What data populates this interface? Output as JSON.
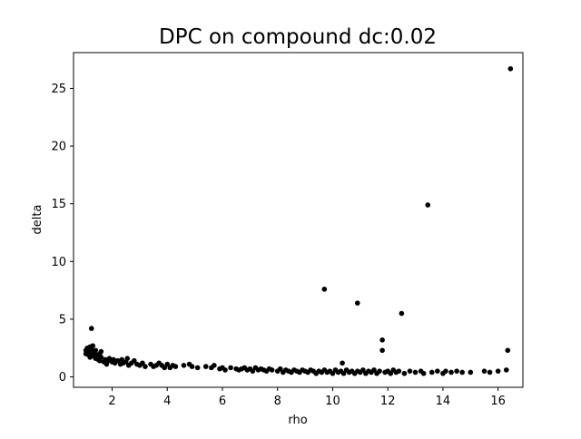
{
  "chart_data": {
    "type": "scatter",
    "title": "DPC on compound  dc:0.02",
    "xlabel": "rho",
    "ylabel": "delta",
    "xlim": [
      0.6,
      16.9
    ],
    "ylim": [
      -0.9,
      28.1
    ],
    "xticks": [
      2,
      4,
      6,
      8,
      10,
      12,
      14,
      16
    ],
    "yticks": [
      0,
      5,
      10,
      15,
      20,
      25
    ],
    "grid": false,
    "legend": "none",
    "marker_color": "#000000",
    "points": [
      [
        16.45,
        26.7
      ],
      [
        13.45,
        14.9
      ],
      [
        9.7,
        7.6
      ],
      [
        10.9,
        6.4
      ],
      [
        12.5,
        5.5
      ],
      [
        1.25,
        4.2
      ],
      [
        11.8,
        3.2
      ],
      [
        11.8,
        2.3
      ],
      [
        16.35,
        2.3
      ],
      [
        10.35,
        1.2
      ],
      [
        1.05,
        2.3
      ],
      [
        1.05,
        2.0
      ],
      [
        1.1,
        2.5
      ],
      [
        1.1,
        2.2
      ],
      [
        1.15,
        1.9
      ],
      [
        1.2,
        2.6
      ],
      [
        1.2,
        2.1
      ],
      [
        1.2,
        1.7
      ],
      [
        1.25,
        2.4
      ],
      [
        1.25,
        1.9
      ],
      [
        1.3,
        2.7
      ],
      [
        1.3,
        2.2
      ],
      [
        1.35,
        1.8
      ],
      [
        1.35,
        2.0
      ],
      [
        1.4,
        2.3
      ],
      [
        1.4,
        1.6
      ],
      [
        1.45,
        1.9
      ],
      [
        1.5,
        1.5
      ],
      [
        1.55,
        2.0
      ],
      [
        1.55,
        1.4
      ],
      [
        1.6,
        2.2
      ],
      [
        1.6,
        1.7
      ],
      [
        1.7,
        1.3
      ],
      [
        1.75,
        1.5
      ],
      [
        1.8,
        1.1
      ],
      [
        1.85,
        1.4
      ],
      [
        1.9,
        1.6
      ],
      [
        2.0,
        1.3
      ],
      [
        2.05,
        1.5
      ],
      [
        2.1,
        1.2
      ],
      [
        2.2,
        1.4
      ],
      [
        2.3,
        1.1
      ],
      [
        2.35,
        1.5
      ],
      [
        2.4,
        1.2
      ],
      [
        2.5,
        1.3
      ],
      [
        2.55,
        1.6
      ],
      [
        2.6,
        1.0
      ],
      [
        2.7,
        1.2
      ],
      [
        2.8,
        1.4
      ],
      [
        2.9,
        1.1
      ],
      [
        3.0,
        1.0
      ],
      [
        3.1,
        1.2
      ],
      [
        3.2,
        0.9
      ],
      [
        3.4,
        1.1
      ],
      [
        3.5,
        0.9
      ],
      [
        3.6,
        1.0
      ],
      [
        3.7,
        1.2
      ],
      [
        3.8,
        1.0
      ],
      [
        3.9,
        0.8
      ],
      [
        4.0,
        1.1
      ],
      [
        4.1,
        0.8
      ],
      [
        4.2,
        1.0
      ],
      [
        4.3,
        0.9
      ],
      [
        4.6,
        1.0
      ],
      [
        4.8,
        1.1
      ],
      [
        4.9,
        0.9
      ],
      [
        5.1,
        0.8
      ],
      [
        5.4,
        0.9
      ],
      [
        5.6,
        0.8
      ],
      [
        5.7,
        1.0
      ],
      [
        5.9,
        0.7
      ],
      [
        6.0,
        0.8
      ],
      [
        6.1,
        0.6
      ],
      [
        6.3,
        0.8
      ],
      [
        6.5,
        0.7
      ],
      [
        6.6,
        0.6
      ],
      [
        6.7,
        0.7
      ],
      [
        6.8,
        0.8
      ],
      [
        6.9,
        0.6
      ],
      [
        7.0,
        0.7
      ],
      [
        7.1,
        0.5
      ],
      [
        7.2,
        0.8
      ],
      [
        7.3,
        0.6
      ],
      [
        7.4,
        0.7
      ],
      [
        7.5,
        0.6
      ],
      [
        7.6,
        0.5
      ],
      [
        7.7,
        0.7
      ],
      [
        7.8,
        0.6
      ],
      [
        8.0,
        0.5
      ],
      [
        8.1,
        0.7
      ],
      [
        8.2,
        0.4
      ],
      [
        8.3,
        0.6
      ],
      [
        8.4,
        0.5
      ],
      [
        8.5,
        0.4
      ],
      [
        8.6,
        0.6
      ],
      [
        8.7,
        0.5
      ],
      [
        8.8,
        0.4
      ],
      [
        8.9,
        0.6
      ],
      [
        9.0,
        0.5
      ],
      [
        9.1,
        0.4
      ],
      [
        9.2,
        0.6
      ],
      [
        9.3,
        0.5
      ],
      [
        9.4,
        0.3
      ],
      [
        9.5,
        0.5
      ],
      [
        9.6,
        0.4
      ],
      [
        9.7,
        0.6
      ],
      [
        9.8,
        0.4
      ],
      [
        9.9,
        0.5
      ],
      [
        10.0,
        0.3
      ],
      [
        10.1,
        0.6
      ],
      [
        10.2,
        0.4
      ],
      [
        10.3,
        0.5
      ],
      [
        10.4,
        0.3
      ],
      [
        10.5,
        0.6
      ],
      [
        10.6,
        0.4
      ],
      [
        10.7,
        0.5
      ],
      [
        10.8,
        0.3
      ],
      [
        10.9,
        0.5
      ],
      [
        11.0,
        0.4
      ],
      [
        11.1,
        0.6
      ],
      [
        11.2,
        0.3
      ],
      [
        11.3,
        0.5
      ],
      [
        11.4,
        0.4
      ],
      [
        11.5,
        0.6
      ],
      [
        11.6,
        0.3
      ],
      [
        11.7,
        0.5
      ],
      [
        11.9,
        0.4
      ],
      [
        12.0,
        0.5
      ],
      [
        12.1,
        0.3
      ],
      [
        12.2,
        0.6
      ],
      [
        12.3,
        0.4
      ],
      [
        12.4,
        0.5
      ],
      [
        12.6,
        0.3
      ],
      [
        12.8,
        0.5
      ],
      [
        13.0,
        0.4
      ],
      [
        13.2,
        0.5
      ],
      [
        13.3,
        0.3
      ],
      [
        13.6,
        0.4
      ],
      [
        13.8,
        0.5
      ],
      [
        14.0,
        0.3
      ],
      [
        14.1,
        0.5
      ],
      [
        14.3,
        0.4
      ],
      [
        14.5,
        0.5
      ],
      [
        14.7,
        0.4
      ],
      [
        15.0,
        0.4
      ],
      [
        15.5,
        0.5
      ],
      [
        15.7,
        0.4
      ],
      [
        16.0,
        0.5
      ],
      [
        16.3,
        0.6
      ]
    ]
  }
}
